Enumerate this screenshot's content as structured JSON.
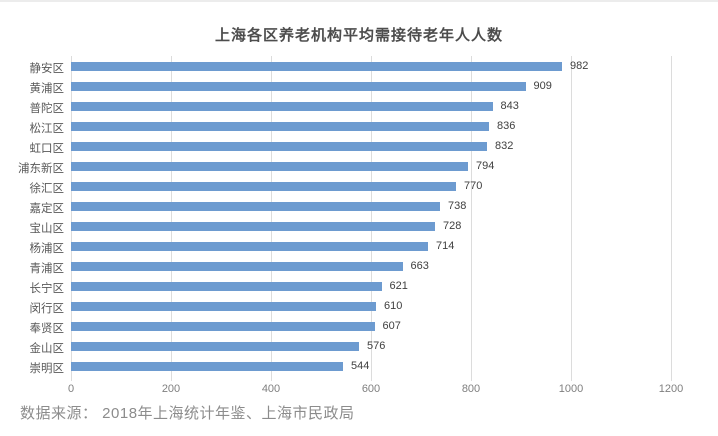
{
  "page": {
    "source_note": "数据来源： 2018年上海统计年鉴、上海市民政局"
  },
  "chart_data": {
    "type": "bar",
    "orientation": "horizontal",
    "title": "上海各区养老机构平均需接待老年人人数",
    "categories": [
      "静安区",
      "黄浦区",
      "普陀区",
      "松江区",
      "虹口区",
      "浦东新区",
      "徐汇区",
      "嘉定区",
      "宝山区",
      "杨浦区",
      "青浦区",
      "长宁区",
      "闵行区",
      "奉贤区",
      "金山区",
      "崇明区"
    ],
    "values": [
      982,
      909,
      843,
      836,
      832,
      794,
      770,
      738,
      728,
      714,
      663,
      621,
      610,
      607,
      576,
      544
    ],
    "xlabel": "",
    "ylabel": "",
    "xlim": [
      0,
      1200
    ],
    "xticks": [
      0,
      200,
      400,
      600,
      800,
      1000,
      1200
    ],
    "grid": "vertical",
    "data_labels": true,
    "legend": "none",
    "bar_color": "#6d9bd0",
    "gridline_color": "#dcdcdc",
    "source": "数据来源： 2018年上海统计年鉴、上海市民政局"
  }
}
